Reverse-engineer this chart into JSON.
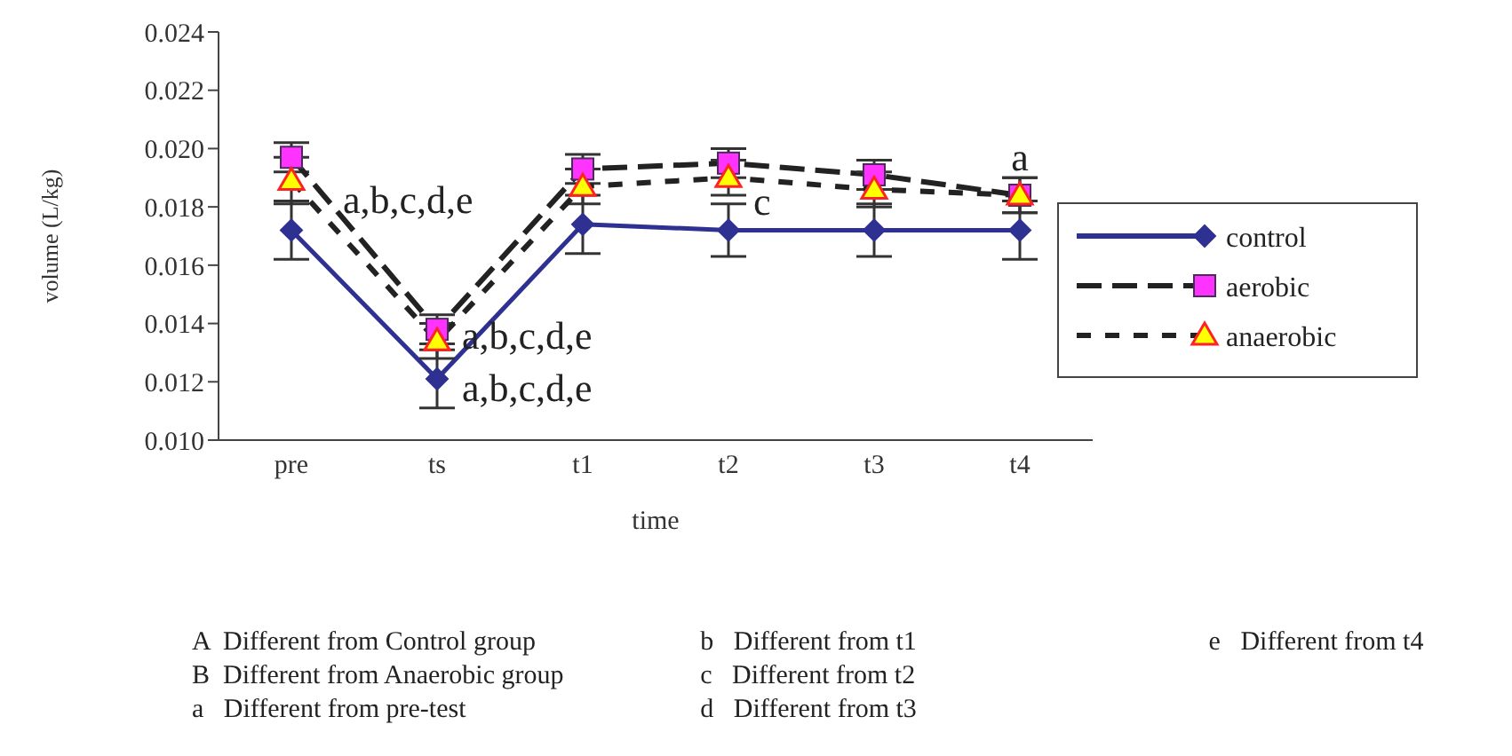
{
  "chart_data": {
    "type": "line",
    "xlabel": "time",
    "ylabel": "volume (L/kg)",
    "categories": [
      "pre",
      "ts",
      "t1",
      "t2",
      "t3",
      "t4"
    ],
    "series": [
      {
        "name": "control",
        "color": "#2e3192",
        "marker": "diamond",
        "line_style": "solid",
        "values": [
          0.0172,
          0.0121,
          0.0174,
          0.0172,
          0.0172,
          0.0172
        ],
        "errors": [
          0.001,
          0.001,
          0.001,
          0.0009,
          0.0009,
          0.001
        ]
      },
      {
        "name": "aerobic",
        "color": "#ff33ff",
        "marker": "square",
        "line_style": "dashed",
        "values": [
          0.0197,
          0.0138,
          0.0193,
          0.0195,
          0.0191,
          0.0184
        ],
        "errors": [
          0.0005,
          0.0005,
          0.0005,
          0.0005,
          0.0005,
          0.0006
        ]
      },
      {
        "name": "anaerobic",
        "color": "#ffff00",
        "marker": "triangle",
        "line_style": "dashed",
        "values": [
          0.0189,
          0.0134,
          0.0187,
          0.019,
          0.0186,
          0.0184
        ],
        "errors": [
          0.0008,
          0.0006,
          0.0006,
          0.0006,
          0.0006,
          0.0006
        ]
      }
    ],
    "ylim": [
      0.01,
      0.024
    ],
    "yticks": [
      {
        "value": 0.01,
        "label": "0.010"
      },
      {
        "value": 0.012,
        "label": "0.012"
      },
      {
        "value": 0.014,
        "label": "0.014"
      },
      {
        "value": 0.016,
        "label": "0.016"
      },
      {
        "value": 0.018,
        "label": "0.018"
      },
      {
        "value": 0.02,
        "label": "0.020"
      },
      {
        "value": 0.022,
        "label": "0.022"
      },
      {
        "value": 0.024,
        "label": "0.024"
      }
    ],
    "legend": "right",
    "grid": false,
    "annotations": [
      "a,b,c,d,e",
      {
        "text": "a,b,c,d,e",
        "x": "ts",
        "y": 0.0136
      },
      {
        "text": "a,b,c,d,e",
        "x": "ts",
        "y": 0.0118
      },
      {
        "text": "c",
        "x": "t2",
        "y": 0.0182
      },
      {
        "text": "a",
        "x": "t4",
        "y": 0.019
      },
      "A  Different from Control group",
      "B  Different from Anaerobic group",
      "a   Different from pre-test",
      "b   Different from t1",
      "c   Different from t2",
      "d   Different from t3",
      "e   Different from t4"
    ]
  }
}
